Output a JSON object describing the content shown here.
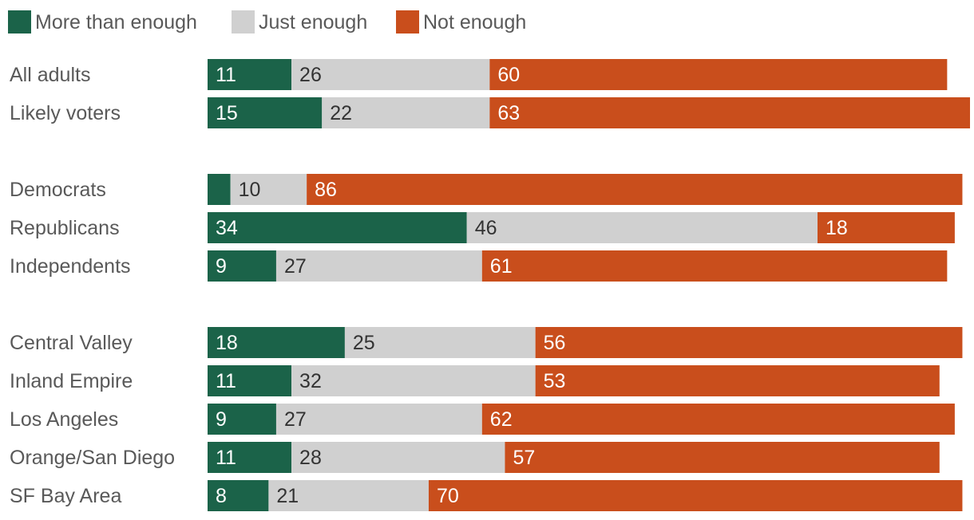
{
  "colors": {
    "more": "#1b6349",
    "just": "#d0d0d0",
    "not": "#c94e1c",
    "label_on_dark": "#ffffff",
    "label_on_light": "#333333"
  },
  "legend": [
    {
      "key": "more",
      "label": "More than enough"
    },
    {
      "key": "just",
      "label": "Just enough"
    },
    {
      "key": "not",
      "label": "Not enough"
    }
  ],
  "chart_data": {
    "type": "bar",
    "orientation": "horizontal",
    "stacked": true,
    "xlim": [
      0,
      100
    ],
    "title": "",
    "xlabel": "",
    "ylabel": "",
    "grid": false,
    "legend_position": "top-left",
    "groups": [
      {
        "rows": [
          {
            "label": "All adults",
            "more": 11,
            "just": 26,
            "not": 60
          },
          {
            "label": "Likely voters",
            "more": 15,
            "just": 22,
            "not": 63
          }
        ]
      },
      {
        "rows": [
          {
            "label": "Democrats",
            "more": 3,
            "just": 10,
            "not": 86,
            "more_label_hidden": true
          },
          {
            "label": "Republicans",
            "more": 34,
            "just": 46,
            "not": 18
          },
          {
            "label": "Independents",
            "more": 9,
            "just": 27,
            "not": 61
          }
        ]
      },
      {
        "rows": [
          {
            "label": "Central Valley",
            "more": 18,
            "just": 25,
            "not": 56
          },
          {
            "label": "Inland Empire",
            "more": 11,
            "just": 32,
            "not": 53
          },
          {
            "label": "Los Angeles",
            "more": 9,
            "just": 27,
            "not": 62
          },
          {
            "label": "Orange/San Diego",
            "more": 11,
            "just": 28,
            "not": 57
          },
          {
            "label": "SF Bay Area",
            "more": 8,
            "just": 21,
            "not": 70
          }
        ]
      }
    ]
  }
}
